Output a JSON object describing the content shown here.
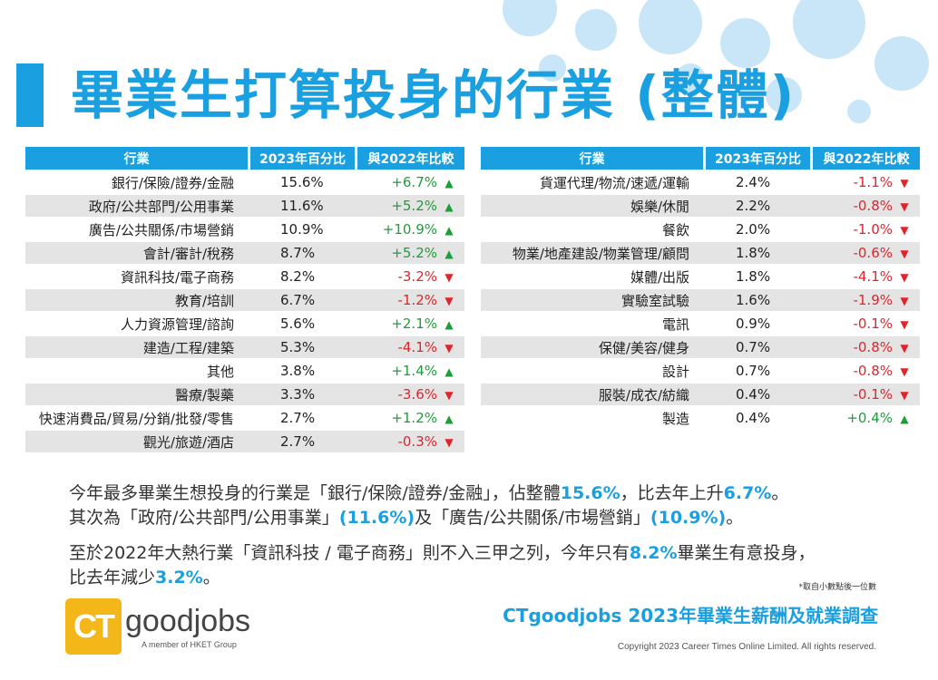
{
  "title": "畢業生打算投身的行業 (整體)",
  "headers": [
    "行業",
    "2023年百分比",
    "與2022年比較"
  ],
  "colors": {
    "accent": "#1aa0e0",
    "up": "#1e9e3a",
    "down": "#e0242b",
    "alt_row": "#e4e4e4",
    "logo": "#f4b71a"
  },
  "left_table": [
    {
      "name": "銀行/保險/證券/金融",
      "pct": "15.6%",
      "cmp": "+6.7%",
      "dir": "up"
    },
    {
      "name": "政府/公共部門/公用事業",
      "pct": "11.6%",
      "cmp": "+5.2%",
      "dir": "up"
    },
    {
      "name": "廣告/公共關係/市場營銷",
      "pct": "10.9%",
      "cmp": "+10.9%",
      "dir": "up"
    },
    {
      "name": "會計/審計/稅務",
      "pct": "8.7%",
      "cmp": "+5.2%",
      "dir": "up"
    },
    {
      "name": "資訊科技/電子商務",
      "pct": "8.2%",
      "cmp": "-3.2%",
      "dir": "down"
    },
    {
      "name": "教育/培訓",
      "pct": "6.7%",
      "cmp": "-1.2%",
      "dir": "down"
    },
    {
      "name": "人力資源管理/諮詢",
      "pct": "5.6%",
      "cmp": "+2.1%",
      "dir": "up"
    },
    {
      "name": "建造/工程/建築",
      "pct": "5.3%",
      "cmp": "-4.1%",
      "dir": "down"
    },
    {
      "name": "其他",
      "pct": "3.8%",
      "cmp": "+1.4%",
      "dir": "up"
    },
    {
      "name": "醫療/製藥",
      "pct": "3.3%",
      "cmp": "-3.6%",
      "dir": "down"
    },
    {
      "name": "快速消費品/貿易/分銷/批發/零售",
      "pct": "2.7%",
      "cmp": "+1.2%",
      "dir": "up"
    },
    {
      "name": "觀光/旅遊/酒店",
      "pct": "2.7%",
      "cmp": "-0.3%",
      "dir": "down"
    }
  ],
  "right_table": [
    {
      "name": "貨運代理/物流/速遞/運輸",
      "pct": "2.4%",
      "cmp": "-1.1%",
      "dir": "down"
    },
    {
      "name": "娛樂/休閒",
      "pct": "2.2%",
      "cmp": "-0.8%",
      "dir": "down"
    },
    {
      "name": "餐飲",
      "pct": "2.0%",
      "cmp": "-1.0%",
      "dir": "down"
    },
    {
      "name": "物業/地產建設/物業管理/顧問",
      "pct": "1.8%",
      "cmp": "-0.6%",
      "dir": "down"
    },
    {
      "name": "媒體/出版",
      "pct": "1.8%",
      "cmp": "-4.1%",
      "dir": "down"
    },
    {
      "name": "實驗室試驗",
      "pct": "1.6%",
      "cmp": "-1.9%",
      "dir": "down"
    },
    {
      "name": "電訊",
      "pct": "0.9%",
      "cmp": "-0.1%",
      "dir": "down"
    },
    {
      "name": "保健/美容/健身",
      "pct": "0.7%",
      "cmp": "-0.8%",
      "dir": "down"
    },
    {
      "name": "設計",
      "pct": "0.7%",
      "cmp": "-0.8%",
      "dir": "down"
    },
    {
      "name": "服裝/成衣/紡織",
      "pct": "0.4%",
      "cmp": "-0.1%",
      "dir": "down"
    },
    {
      "name": "製造",
      "pct": "0.4%",
      "cmp": "+0.4%",
      "dir": "up"
    }
  ],
  "para1": {
    "a": "今年最多畢業生想投身的行業是「銀行/保險/證券/金融」，佔整體",
    "b": "15.6%",
    "c": "，比去年上升",
    "d": "6.7%",
    "e": "。",
    "f": "其次為「政府/公共部門/公用事業」",
    "g": "(11.6%)",
    "h": "及「廣告/公共關係/市場營銷」",
    "i": "(10.9%)",
    "j": "。"
  },
  "para2": {
    "a": "至於2022年大熱行業「資訊科技 / 電子商務」則不入三甲之列，今年只有",
    "b": "8.2%",
    "c": "畢業生有意投身，",
    "d": "比去年減少",
    "e": "3.2%",
    "f": "。"
  },
  "note": "*取自小數點後一位數",
  "logo": {
    "mark": "CT",
    "word": "goodjobs",
    "sub": "A member of HKET Group"
  },
  "survey_title": "CTgoodjobs 2023年畢業生薪酬及就業調查",
  "copyright": "Copyright 2023 Career Times Online Limited. All rights reserved.",
  "icons": {
    "up": "arrow-up-icon",
    "down": "arrow-down-icon"
  }
}
